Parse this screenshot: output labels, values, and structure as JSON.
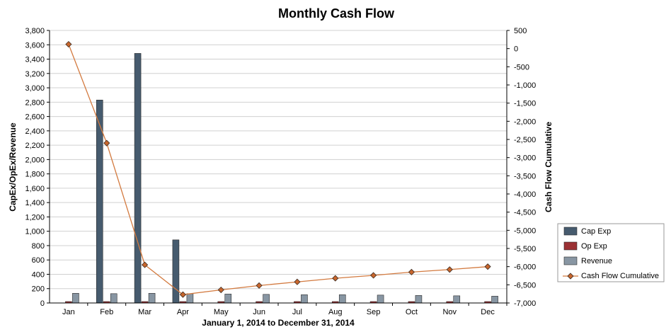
{
  "chart_data": {
    "type": "bar",
    "title": "Monthly Cash Flow",
    "xlabel": "January 1, 2014 to December 31, 2014",
    "ylabel": "CapEx/OpEx/Revenue",
    "y2label": "Cash Flow Cumulative",
    "categories": [
      "Jan",
      "Feb",
      "Mar",
      "Apr",
      "May",
      "Jun",
      "Jul",
      "Aug",
      "Sep",
      "Oct",
      "Nov",
      "Dec"
    ],
    "ylim": [
      0,
      3800
    ],
    "y_ticks": [
      "0",
      "200",
      "400",
      "600",
      "800",
      "1,000",
      "1,200",
      "1,400",
      "1,600",
      "1,800",
      "2,000",
      "2,200",
      "2,400",
      "2,600",
      "2,800",
      "3,000",
      "3,200",
      "3,400",
      "3,600",
      "3,800"
    ],
    "y2lim": [
      -7000,
      500
    ],
    "y2_ticks": [
      "-7,000",
      "-6,500",
      "-6,000",
      "-5,500",
      "-5,000",
      "-4,500",
      "-4,000",
      "-3,500",
      "-3,000",
      "-2,500",
      "-2,000",
      "-1,500",
      "-1,000",
      "-500",
      "0",
      "500"
    ],
    "grid": true,
    "legend_position": "right",
    "series": [
      {
        "name": "Cap Exp",
        "kind": "bar",
        "axis": "left",
        "color": "#465b6e",
        "values": [
          0,
          2830,
          3480,
          880,
          0,
          0,
          0,
          0,
          0,
          0,
          0,
          0
        ]
      },
      {
        "name": "Op Exp",
        "kind": "bar",
        "axis": "left",
        "color": "#9b3134",
        "values": [
          20,
          20,
          20,
          20,
          20,
          20,
          20,
          20,
          20,
          20,
          20,
          20
        ]
      },
      {
        "name": "Revenue",
        "kind": "bar",
        "axis": "left",
        "color": "#8896a3",
        "values": [
          135,
          130,
          135,
          130,
          125,
          120,
          115,
          115,
          110,
          105,
          100,
          95
        ]
      },
      {
        "name": "Cash Flow Cumulative",
        "kind": "line",
        "axis": "right",
        "color": "#d37a3f",
        "marker_color": "#c8662d",
        "values": [
          120,
          -2600,
          -5950,
          -6770,
          -6640,
          -6520,
          -6420,
          -6320,
          -6240,
          -6150,
          -6080,
          -6000
        ]
      }
    ]
  }
}
